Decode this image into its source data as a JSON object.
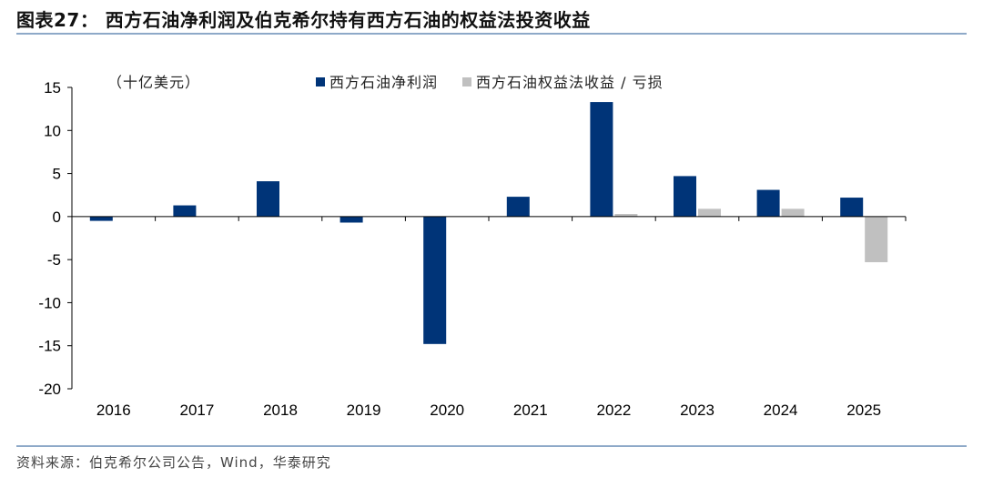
{
  "header": {
    "title": "图表27： 西方石油净利润及伯克希尔持有西方石油的权益法投资收益"
  },
  "footer": {
    "source": "资料来源：伯克希尔公司公告，Wind，华泰研究"
  },
  "chart_data": {
    "type": "bar",
    "unit_label": "（十亿美元）",
    "categories": [
      "2016",
      "2017",
      "2018",
      "2019",
      "2020",
      "2021",
      "2022",
      "2023",
      "2024",
      "2025"
    ],
    "series": [
      {
        "name": "西方石油净利润",
        "color": "#003478",
        "values": [
          -0.5,
          1.3,
          4.1,
          -0.7,
          -14.8,
          2.3,
          13.3,
          4.7,
          3.1,
          2.2
        ]
      },
      {
        "name": "西方石油权益法收益 / 亏损",
        "color": "#c0c0c0",
        "values": [
          null,
          null,
          null,
          null,
          null,
          null,
          0.3,
          0.9,
          0.9,
          -5.3
        ]
      }
    ],
    "ylim": [
      -20,
      15
    ],
    "yticks": [
      15,
      10,
      5,
      0,
      -5,
      -10,
      -15,
      -20
    ],
    "legend_position": "top",
    "grid": false
  }
}
